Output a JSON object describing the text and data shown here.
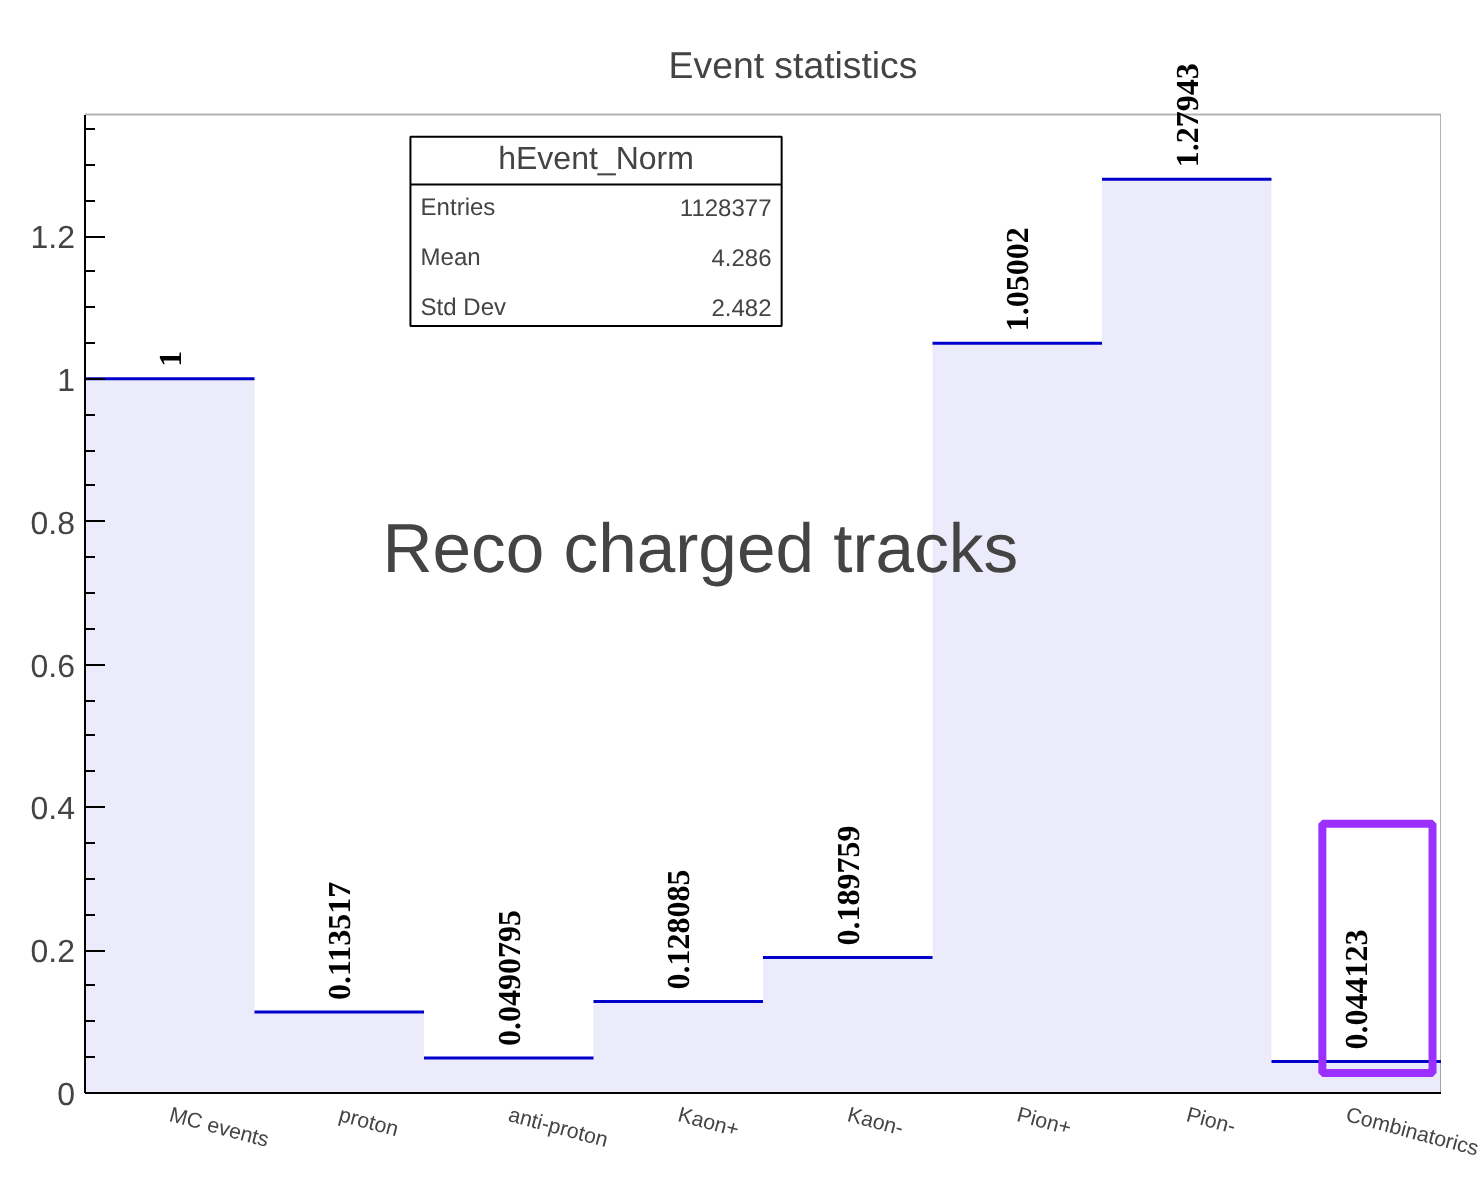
{
  "chart_data": {
    "type": "bar",
    "title": "Event statistics",
    "categories": [
      "MC events",
      "proton",
      "anti-proton",
      "Kaon+",
      "Kaon-",
      "Pion+",
      "Pion-",
      "Combinatorics"
    ],
    "values": [
      1,
      0.113517,
      0.0490795,
      0.128085,
      0.189759,
      1.05002,
      1.27943,
      0.044123
    ],
    "color": "#0000cc",
    "ylim": [
      0,
      1.37
    ],
    "yticks": [
      0,
      0.2,
      0.4,
      0.6,
      0.8,
      1,
      1.2
    ],
    "data_labels": true,
    "grid": false,
    "legend": false,
    "annotations": [
      "hEvent_Norm",
      "Entries 1128377",
      "Mean 4.286",
      "Std Dev 2.482",
      "Reco charged tracks"
    ]
  }
}
